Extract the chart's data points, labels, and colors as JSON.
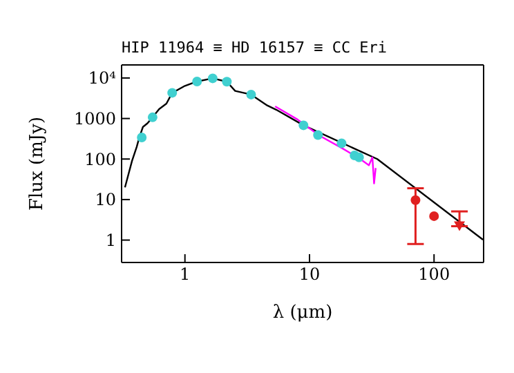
{
  "chart_data": {
    "type": "scatter",
    "title": "HIP 11964 ≡ HD 16157 ≡ CC Eri",
    "xlabel": "λ (μm)",
    "ylabel": "Flux (mJy)",
    "log": "xy",
    "xlim": [
      0.31,
      250
    ],
    "xticks": [
      1,
      10,
      100
    ],
    "ylim": [
      0.28,
      21000
    ],
    "yticks": [
      1,
      10,
      100,
      1000,
      {
        "value": 10000,
        "label": "10⁴"
      }
    ],
    "series": [
      {
        "type": "line",
        "marker": "none",
        "color": "#000000",
        "x": [
          0.33,
          0.376,
          0.41,
          0.43,
          0.46,
          0.5,
          0.55,
          0.62,
          0.71,
          0.79,
          1.0,
          1.25,
          1.67,
          2.17,
          2.53,
          3.4,
          4.58,
          5.4,
          8.95,
          35,
          247
        ],
        "values": [
          20,
          90,
          200,
          340,
          620,
          760,
          1070,
          1700,
          2330,
          4300,
          6400,
          8200,
          9800,
          8100,
          4800,
          3900,
          2100,
          1650,
          680,
          100,
          1.02
        ]
      },
      {
        "type": "line",
        "marker": "none",
        "color": "#ff00ff",
        "x": [
          5.3,
          8,
          12,
          18,
          25,
          30,
          32,
          33,
          34
        ],
        "values": [
          2000,
          950,
          380,
          190,
          105,
          70,
          110,
          25,
          60
        ]
      },
      {
        "marker": "circle",
        "color": "#40d0d0",
        "x": [
          0.45,
          0.55,
          0.79,
          1.25,
          1.67,
          2.17,
          3.4,
          8.95,
          11.7,
          18.1,
          23,
          25
        ],
        "values": [
          340,
          1070,
          4300,
          8200,
          9800,
          8100,
          3900,
          680,
          390,
          245,
          123,
          110
        ]
      },
      {
        "marker": "circle",
        "color": "#e02020",
        "x": [
          71,
          100
        ],
        "values": [
          9.7,
          3.9
        ],
        "errors": [
          [
            0.8,
            19
          ],
          null
        ]
      },
      {
        "marker": "triangle",
        "color": "#e02020",
        "x": [
          160
        ],
        "values": [
          2.2
        ],
        "errors": [
          [
            2.2,
            5.1
          ]
        ]
      }
    ]
  }
}
